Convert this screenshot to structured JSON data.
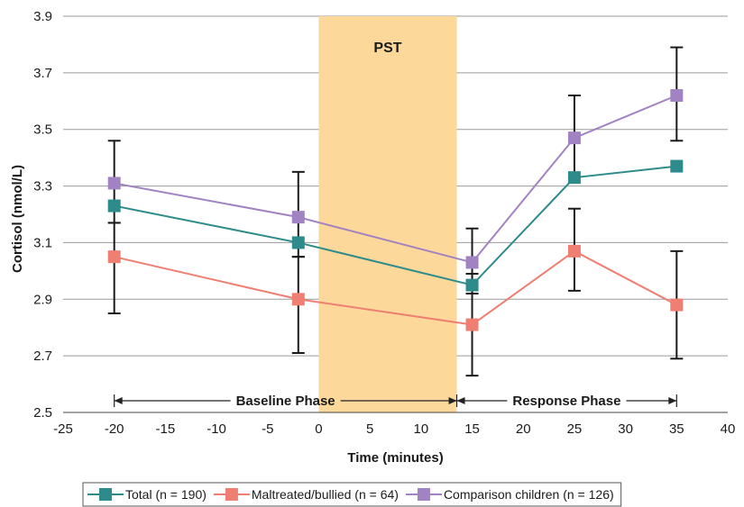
{
  "chart_data": {
    "type": "line",
    "xlabel": "Time (minutes)",
    "ylabel": "Cortisol (nmol/L)",
    "xlim": [
      -25,
      40
    ],
    "ylim": [
      2.5,
      3.9
    ],
    "x_ticks": [
      -25,
      -20,
      -15,
      -10,
      -5,
      0,
      5,
      10,
      15,
      20,
      25,
      30,
      35,
      40
    ],
    "y_ticks": [
      2.5,
      2.7,
      2.9,
      3.1,
      3.3,
      3.5,
      3.7,
      3.9
    ],
    "y_tick_labels": [
      "2.5",
      "2.7",
      "2.9",
      "3.1",
      "3.3",
      "3.5",
      "3.7",
      "3.9"
    ],
    "grid": "horizontal",
    "legend_position": "bottom",
    "shaded_region": {
      "label": "PST",
      "x_start": 0,
      "x_end": 13.5,
      "color": "#fcd89a"
    },
    "phases": [
      {
        "label": "Baseline Phase",
        "x_start": -20,
        "x_end": 13.5
      },
      {
        "label": "Response Phase",
        "x_start": 13.5,
        "x_end": 35
      }
    ],
    "series": [
      {
        "name": "Total (n = 190)",
        "color": "#2e8b8b",
        "x": [
          -20,
          -2,
          15,
          25,
          35
        ],
        "values": [
          3.23,
          3.1,
          2.95,
          3.33,
          3.37
        ],
        "error_bars": false
      },
      {
        "name": "Maltreated/bullied (n = 64)",
        "color": "#ef7f72",
        "x": [
          -20,
          -2,
          15,
          25,
          35
        ],
        "values": [
          3.05,
          2.9,
          2.81,
          3.07,
          2.88
        ],
        "error_bars": true,
        "error_low": [
          2.85,
          2.71,
          2.63,
          2.93,
          2.69
        ],
        "error_high": [
          3.17,
          3.05,
          2.99,
          3.22,
          3.07
        ]
      },
      {
        "name": "Comparison children (n = 126)",
        "color": "#a182c2",
        "x": [
          -20,
          -2,
          15,
          25,
          35
        ],
        "values": [
          3.31,
          3.19,
          3.03,
          3.47,
          3.62
        ],
        "error_bars": true,
        "error_low": [
          3.17,
          3.05,
          2.92,
          3.33,
          3.46
        ],
        "error_high": [
          3.46,
          3.35,
          3.15,
          3.62,
          3.79
        ]
      }
    ]
  }
}
